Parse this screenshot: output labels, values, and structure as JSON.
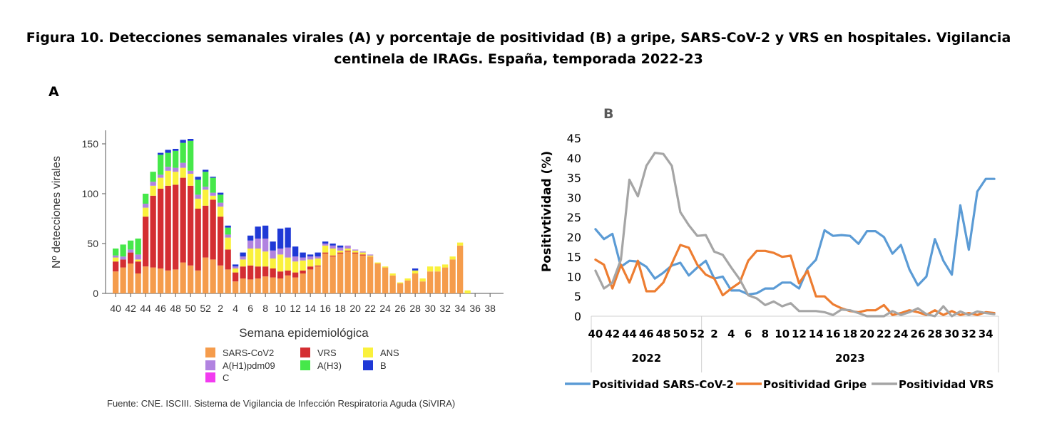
{
  "figure": {
    "title_line1": "Figura 10. Detecciones semanales virales (A) y porcentaje de positividad (B) a gripe, SARS-CoV-2 y VRS en hospitales. Vigilancia",
    "title_line2": "centinela de IRAGs.  España, temporada 2022-23",
    "panel_a_label": "A",
    "panel_b_label": "B",
    "source": "Fuente: CNE. ISCIII. Sistema de Vigilancia de Infección Respiratoria Aguda (SiVIRA)"
  },
  "chart_data": [
    {
      "type": "bar",
      "stacked": true,
      "xlabel": "Semana epidemiológica",
      "ylabel": "Nº detecciones virales",
      "ylim": [
        0,
        160
      ],
      "yticks": [
        0,
        50,
        100,
        150
      ],
      "xticks": [
        "40",
        "42",
        "44",
        "46",
        "48",
        "50",
        "52",
        "2",
        "4",
        "6",
        "8",
        "10",
        "12",
        "14",
        "16",
        "18",
        "20",
        "22",
        "24",
        "26",
        "28",
        "30",
        "32",
        "34",
        "36",
        "38"
      ],
      "categories": [
        "40",
        "41",
        "42",
        "43",
        "44",
        "45",
        "46",
        "47",
        "48",
        "49",
        "50",
        "51",
        "52",
        "1",
        "2",
        "3",
        "4",
        "5",
        "6",
        "7",
        "8",
        "9",
        "10",
        "11",
        "12",
        "13",
        "14",
        "15",
        "16",
        "17",
        "18",
        "19",
        "20",
        "21",
        "22",
        "23",
        "24",
        "25",
        "26",
        "27",
        "28",
        "29",
        "30",
        "31",
        "32",
        "33",
        "34",
        "35",
        "36",
        "37",
        "38",
        "39"
      ],
      "legend_position": "bottom",
      "series": [
        {
          "name": "SARS-CoV2",
          "color": "#F59C4C",
          "values": [
            22,
            26,
            30,
            20,
            27,
            26,
            25,
            23,
            24,
            31,
            28,
            23,
            36,
            34,
            28,
            24,
            12,
            15,
            14,
            15,
            17,
            16,
            15,
            18,
            16,
            20,
            24,
            27,
            40,
            37,
            40,
            42,
            40,
            38,
            37,
            30,
            26,
            18,
            10,
            13,
            20,
            12,
            22,
            22,
            26,
            34,
            48,
            0,
            0,
            0,
            0,
            0
          ]
        },
        {
          "name": "VRS",
          "color": "#D42E32",
          "values": [
            10,
            8,
            11,
            12,
            50,
            72,
            80,
            85,
            85,
            85,
            80,
            62,
            52,
            60,
            49,
            20,
            9,
            12,
            14,
            12,
            10,
            9,
            7,
            5,
            5,
            3,
            3,
            1,
            1,
            1,
            1,
            1,
            1,
            1,
            0,
            0,
            0,
            0,
            0,
            0,
            0,
            0,
            0,
            0,
            0,
            0,
            0,
            0,
            0,
            0,
            0,
            0
          ]
        },
        {
          "name": "ANS",
          "color": "#FAF13C",
          "values": [
            4,
            0,
            0,
            2,
            9,
            10,
            11,
            15,
            13,
            10,
            12,
            10,
            16,
            4,
            10,
            12,
            4,
            7,
            17,
            18,
            15,
            10,
            17,
            13,
            11,
            10,
            7,
            7,
            7,
            7,
            2,
            2,
            2,
            2,
            1,
            1,
            1,
            2,
            1,
            2,
            3,
            3,
            5,
            5,
            3,
            3,
            3,
            3,
            0,
            0,
            0,
            0
          ]
        },
        {
          "name": "A(H1)pdm09",
          "color": "#B183E0",
          "values": [
            2,
            3,
            3,
            5,
            4,
            4,
            3,
            4,
            4,
            5,
            3,
            4,
            3,
            3,
            4,
            3,
            2,
            3,
            8,
            10,
            13,
            8,
            6,
            10,
            5,
            3,
            3,
            2,
            2,
            3,
            3,
            3,
            1,
            1,
            1,
            0,
            0,
            0,
            0,
            0,
            0,
            0,
            0,
            0,
            0,
            0,
            0,
            0,
            0,
            0,
            0,
            0
          ]
        },
        {
          "name": "A(H3)",
          "color": "#46E84A",
          "values": [
            7,
            12,
            9,
            16,
            10,
            10,
            20,
            14,
            17,
            20,
            30,
            15,
            15,
            15,
            8,
            7,
            0,
            0,
            0,
            0,
            0,
            0,
            0,
            0,
            0,
            0,
            0,
            0,
            0,
            0,
            0,
            0,
            0,
            0,
            0,
            0,
            0,
            0,
            0,
            0,
            0,
            0,
            0,
            0,
            0,
            0,
            0,
            0,
            0,
            0,
            0,
            0
          ]
        },
        {
          "name": "B",
          "color": "#1F39D6",
          "values": [
            0,
            0,
            0,
            0,
            0,
            0,
            2,
            3,
            2,
            3,
            2,
            3,
            2,
            1,
            2,
            2,
            2,
            4,
            5,
            12,
            13,
            9,
            20,
            20,
            10,
            5,
            2,
            4,
            2,
            2,
            2,
            0,
            0,
            0,
            0,
            0,
            0,
            0,
            0,
            0,
            2,
            0,
            0,
            0,
            0,
            0,
            0,
            0,
            0,
            0,
            0,
            0
          ]
        },
        {
          "name": "C",
          "color": "#F23BF0",
          "values": [
            0,
            0,
            0,
            0,
            0,
            0,
            0,
            0,
            0,
            0,
            0,
            0,
            0,
            0,
            0,
            0,
            0,
            0,
            0,
            0,
            0,
            0,
            0,
            0,
            0,
            0,
            0,
            0,
            0,
            0,
            0,
            0,
            0,
            0,
            0,
            0,
            0,
            0,
            0,
            0,
            0,
            0,
            0,
            0,
            0,
            0,
            0,
            0,
            0,
            0,
            0,
            0
          ]
        }
      ]
    },
    {
      "type": "line",
      "xlabel": "",
      "ylabel": "Positivtividad (%)",
      "ylim": [
        0,
        45
      ],
      "yticks": [
        0,
        5,
        10,
        15,
        20,
        25,
        30,
        35,
        40,
        45
      ],
      "xticks": [
        "40",
        "42",
        "44",
        "46",
        "48",
        "50",
        "52",
        "2",
        "4",
        "6",
        "8",
        "10",
        "12",
        "14",
        "16",
        "18",
        "20",
        "22",
        "24",
        "26",
        "28",
        "30",
        "32",
        "34"
      ],
      "x": [
        "40",
        "41",
        "42",
        "43",
        "44",
        "45",
        "46",
        "47",
        "48",
        "49",
        "50",
        "51",
        "52",
        "1",
        "2",
        "3",
        "4",
        "5",
        "6",
        "7",
        "8",
        "9",
        "10",
        "11",
        "12",
        "13",
        "14",
        "15",
        "16",
        "17",
        "18",
        "19",
        "20",
        "21",
        "22",
        "23",
        "24",
        "25",
        "26",
        "27",
        "28",
        "29",
        "30",
        "31",
        "32",
        "33",
        "34",
        "35"
      ],
      "year_groups": [
        {
          "label": "2022",
          "from": 0,
          "to": 12
        },
        {
          "label": "2023",
          "from": 13,
          "to": 47
        }
      ],
      "legend_position": "bottom",
      "series": [
        {
          "name": "Positividad SARS-CoV-2",
          "color": "#5B9BD5",
          "values": [
            22,
            19.5,
            20.8,
            12.5,
            14,
            13.8,
            12.5,
            9.5,
            11,
            12.8,
            13.5,
            10.3,
            12.3,
            14,
            9.5,
            10,
            6.5,
            6.5,
            5.5,
            5.8,
            7,
            7,
            8.5,
            8.5,
            7,
            12,
            14.3,
            21.7,
            20.3,
            20.5,
            20.3,
            18.3,
            21.5,
            21.5,
            20,
            15.8,
            18,
            11.8,
            7.8,
            10,
            19.5,
            14,
            10.5,
            28,
            16.8,
            31.5,
            34.7,
            34.7
          ]
        },
        {
          "name": "Positividad Gripe",
          "color": "#ED7D31",
          "values": [
            14.3,
            13,
            7,
            13,
            8.5,
            14,
            6.3,
            6.3,
            8.5,
            13.3,
            18,
            17.3,
            13,
            10.5,
            9.5,
            5.3,
            7,
            8.5,
            14,
            16.5,
            16.5,
            16,
            15,
            15.3,
            8.3,
            11.5,
            5,
            5,
            3,
            2,
            1.3,
            1,
            1.5,
            1.5,
            2.8,
            0.3,
            0.8,
            1.5,
            1,
            0.3,
            1.5,
            0.3,
            1.3,
            0.3,
            0.8,
            0.3,
            1,
            0.8
          ]
        },
        {
          "name": "Positividad VRS",
          "color": "#A5A5A5",
          "values": [
            11.5,
            7,
            8.5,
            14.3,
            34.5,
            30.3,
            38,
            41.3,
            41,
            38,
            26.3,
            23,
            20.3,
            20.5,
            16.3,
            15.5,
            12.3,
            9.3,
            5.3,
            4.5,
            2.8,
            3.7,
            2.5,
            3.3,
            1.3,
            1.3,
            1.3,
            1,
            0.3,
            1.7,
            1.5,
            0.8,
            0,
            0,
            0,
            1.3,
            0.3,
            1,
            2,
            0.5,
            0,
            2.5,
            0,
            1.2,
            0.3,
            1.2,
            0.8,
            0.5
          ]
        }
      ]
    }
  ]
}
